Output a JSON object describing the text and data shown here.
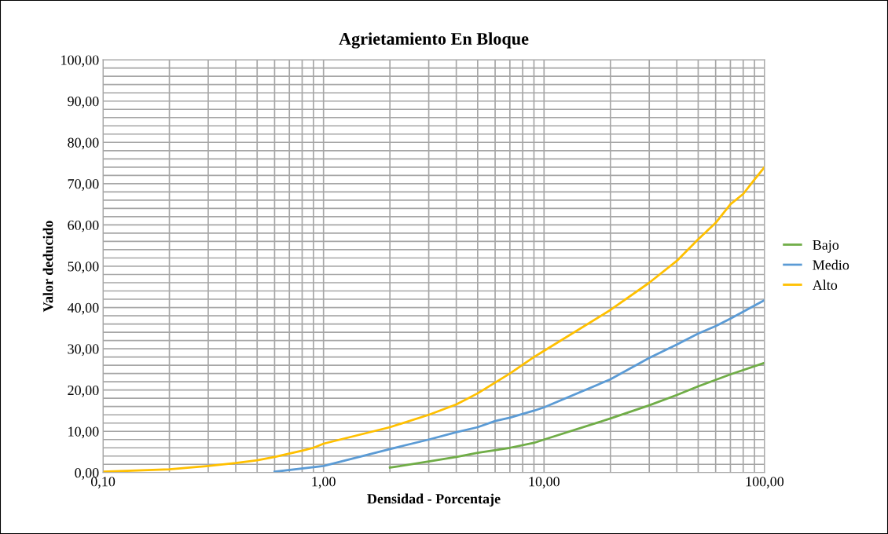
{
  "chart_data": {
    "type": "line",
    "title": "Agrietamiento En Bloque",
    "xlabel": "Densidad - Porcentaje",
    "ylabel": "Valor deducido",
    "log": "x",
    "grid": true,
    "legend": "right",
    "marker": "none",
    "line_style": "solid",
    "xlim": [
      0.1,
      100
    ],
    "xticks": [
      {
        "value": 0.1,
        "label": "0,10"
      },
      {
        "value": 0.2,
        "label": null
      },
      {
        "value": 0.3,
        "label": null
      },
      {
        "value": 0.4,
        "label": null
      },
      {
        "value": 0.5,
        "label": null
      },
      {
        "value": 0.6,
        "label": null
      },
      {
        "value": 0.7,
        "label": null
      },
      {
        "value": 0.8,
        "label": null
      },
      {
        "value": 0.9,
        "label": null
      },
      {
        "value": 1,
        "label": "1,00"
      },
      {
        "value": 2,
        "label": null
      },
      {
        "value": 3,
        "label": null
      },
      {
        "value": 4,
        "label": null
      },
      {
        "value": 5,
        "label": null
      },
      {
        "value": 6,
        "label": null
      },
      {
        "value": 7,
        "label": null
      },
      {
        "value": 8,
        "label": null
      },
      {
        "value": 9,
        "label": null
      },
      {
        "value": 10,
        "label": "10,00"
      },
      {
        "value": 20,
        "label": null
      },
      {
        "value": 30,
        "label": null
      },
      {
        "value": 40,
        "label": null
      },
      {
        "value": 50,
        "label": null
      },
      {
        "value": 60,
        "label": null
      },
      {
        "value": 70,
        "label": null
      },
      {
        "value": 80,
        "label": null
      },
      {
        "value": 90,
        "label": null
      },
      {
        "value": 100,
        "label": "100,00"
      }
    ],
    "ylim": [
      0,
      100
    ],
    "yticks": [
      {
        "value": 0,
        "label": "0,00"
      },
      {
        "value": 2,
        "label": null
      },
      {
        "value": 4,
        "label": null
      },
      {
        "value": 6,
        "label": null
      },
      {
        "value": 8,
        "label": null
      },
      {
        "value": 10,
        "label": "10,00"
      },
      {
        "value": 12,
        "label": null
      },
      {
        "value": 14,
        "label": null
      },
      {
        "value": 16,
        "label": null
      },
      {
        "value": 18,
        "label": null
      },
      {
        "value": 20,
        "label": "20,00"
      },
      {
        "value": 22,
        "label": null
      },
      {
        "value": 24,
        "label": null
      },
      {
        "value": 26,
        "label": null
      },
      {
        "value": 28,
        "label": null
      },
      {
        "value": 30,
        "label": "30,00"
      },
      {
        "value": 32,
        "label": null
      },
      {
        "value": 34,
        "label": null
      },
      {
        "value": 36,
        "label": null
      },
      {
        "value": 38,
        "label": null
      },
      {
        "value": 40,
        "label": "40,00"
      },
      {
        "value": 42,
        "label": null
      },
      {
        "value": 44,
        "label": null
      },
      {
        "value": 46,
        "label": null
      },
      {
        "value": 48,
        "label": null
      },
      {
        "value": 50,
        "label": "50,00"
      },
      {
        "value": 52,
        "label": null
      },
      {
        "value": 54,
        "label": null
      },
      {
        "value": 56,
        "label": null
      },
      {
        "value": 58,
        "label": null
      },
      {
        "value": 60,
        "label": "60,00"
      },
      {
        "value": 62,
        "label": null
      },
      {
        "value": 64,
        "label": null
      },
      {
        "value": 66,
        "label": null
      },
      {
        "value": 68,
        "label": null
      },
      {
        "value": 70,
        "label": "70,00"
      },
      {
        "value": 72,
        "label": null
      },
      {
        "value": 74,
        "label": null
      },
      {
        "value": 76,
        "label": null
      },
      {
        "value": 78,
        "label": null
      },
      {
        "value": 80,
        "label": "80,00"
      },
      {
        "value": 82,
        "label": null
      },
      {
        "value": 84,
        "label": null
      },
      {
        "value": 86,
        "label": null
      },
      {
        "value": 88,
        "label": null
      },
      {
        "value": 90,
        "label": "90,00"
      },
      {
        "value": 92,
        "label": null
      },
      {
        "value": 94,
        "label": null
      },
      {
        "value": 96,
        "label": null
      },
      {
        "value": 98,
        "label": null
      },
      {
        "value": 100,
        "label": "100,00"
      }
    ],
    "series": [
      {
        "name": "Bajo",
        "color": "#70ad47",
        "x": [
          2,
          3,
          4,
          5,
          7,
          9,
          10,
          20,
          30,
          40,
          50,
          70,
          100
        ],
        "values": [
          1.2,
          2.7,
          3.8,
          4.8,
          6.0,
          7.2,
          8.0,
          13.1,
          16.3,
          18.8,
          20.9,
          23.8,
          26.6
        ]
      },
      {
        "name": "Medio",
        "color": "#5b9bd5",
        "x": [
          0.6,
          1,
          2,
          3,
          4,
          5,
          6,
          7,
          9,
          10,
          20,
          30,
          40,
          50,
          60,
          70,
          100
        ],
        "values": [
          0.2,
          1.6,
          5.7,
          8.0,
          9.8,
          11.0,
          12.5,
          13.3,
          15.0,
          15.8,
          22.6,
          27.8,
          31.0,
          33.7,
          35.5,
          37.3,
          41.8
        ]
      },
      {
        "name": "Alto",
        "color": "#ffc000",
        "x": [
          0.1,
          0.2,
          0.3,
          0.4,
          0.5,
          0.6,
          0.8,
          0.9,
          1,
          2,
          3,
          4,
          5,
          7,
          9,
          10,
          20,
          30,
          40,
          50,
          60,
          70,
          80,
          90,
          100
        ],
        "values": [
          0.2,
          0.8,
          1.6,
          2.3,
          3.0,
          3.8,
          5.3,
          6.0,
          7.0,
          11.0,
          14.0,
          16.5,
          19.2,
          24.0,
          28.0,
          29.5,
          39.4,
          46.0,
          51.3,
          56.5,
          60.5,
          65.0,
          67.5,
          71.0,
          74.0
        ]
      }
    ]
  }
}
